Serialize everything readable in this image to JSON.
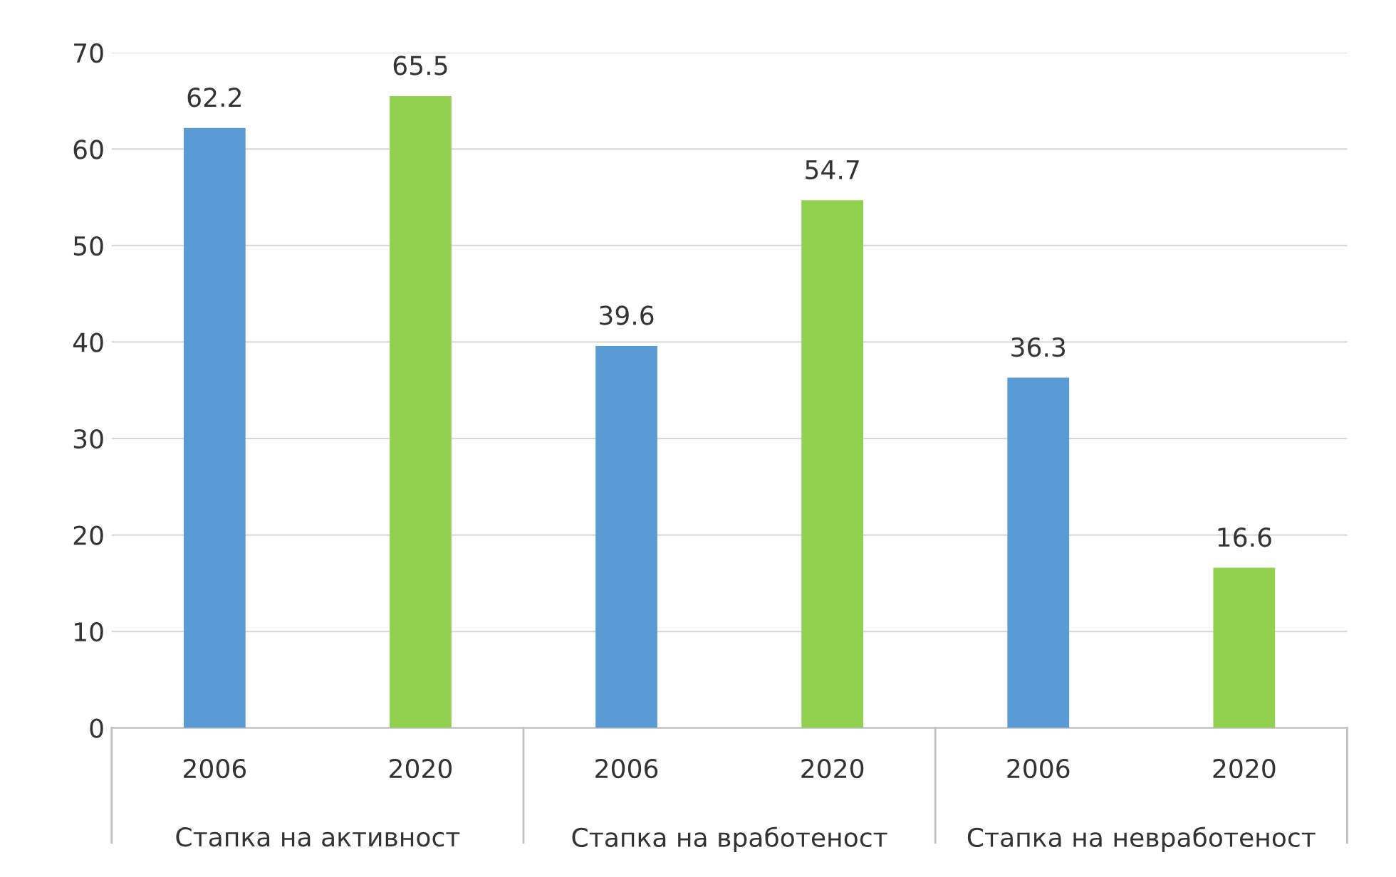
{
  "chart_data": {
    "type": "bar",
    "categories": [
      "Стапка на активност",
      "Стапка на вработеност",
      "Стапка на невработеност"
    ],
    "series": [
      {
        "name": "2006",
        "color": "#5b9bd5",
        "values": [
          62.2,
          39.6,
          36.3
        ]
      },
      {
        "name": "2020",
        "color": "#92d050",
        "values": [
          65.5,
          54.7,
          16.6
        ]
      }
    ],
    "ylim": [
      0,
      70
    ],
    "yticks": [
      0,
      10,
      20,
      30,
      40,
      50,
      60,
      70
    ],
    "grid": "y",
    "data_labels": true
  }
}
